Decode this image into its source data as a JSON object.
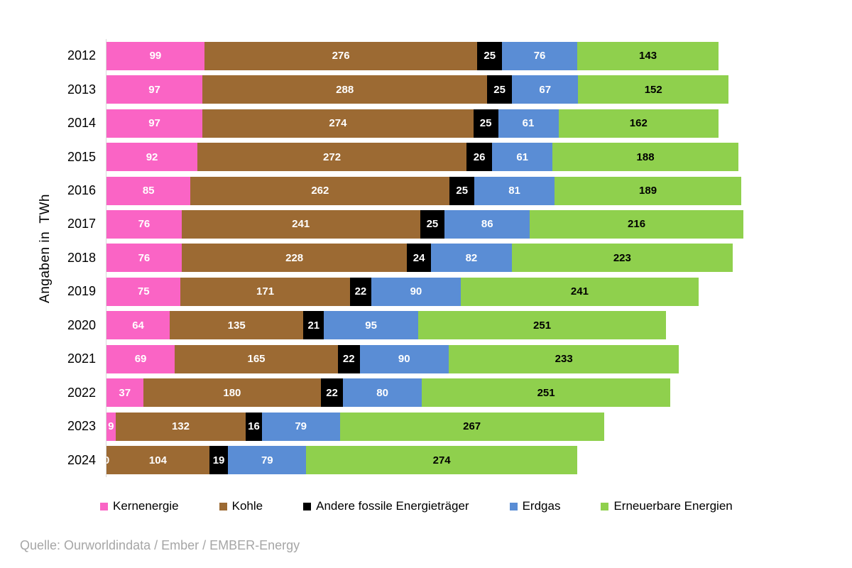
{
  "chart_data": {
    "type": "bar",
    "orientation": "horizontal",
    "stacked": true,
    "ylabel": "Angaben in  TWh",
    "unit": "TWh",
    "grid": false,
    "legend_position": "bottom",
    "xlim": [
      0,
      650
    ],
    "categories": [
      "2012",
      "2013",
      "2014",
      "2015",
      "2016",
      "2017",
      "2018",
      "2019",
      "2020",
      "2021",
      "2022",
      "2023",
      "2024"
    ],
    "series": [
      {
        "name": "Kernenergie",
        "color": "#fa64c5",
        "label_color": "#ffffff",
        "values": [
          99,
          97,
          97,
          92,
          85,
          76,
          76,
          75,
          64,
          69,
          37,
          9,
          0
        ]
      },
      {
        "name": "Kohle",
        "color": "#9c6a33",
        "label_color": "#ffffff",
        "values": [
          276,
          288,
          274,
          272,
          262,
          241,
          228,
          171,
          135,
          165,
          180,
          132,
          104
        ]
      },
      {
        "name": "Andere fossile Energieträger",
        "color": "#000000",
        "label_color": "#ffffff",
        "values": [
          25,
          25,
          25,
          26,
          25,
          25,
          24,
          22,
          21,
          22,
          22,
          16,
          19
        ]
      },
      {
        "name": "Erdgas",
        "color": "#5a8dd5",
        "label_color": "#ffffff",
        "values": [
          76,
          67,
          61,
          61,
          81,
          86,
          82,
          90,
          95,
          90,
          80,
          79,
          79
        ]
      },
      {
        "name": "Erneuerbare Energien",
        "color": "#8fd04d",
        "label_color": "#000000",
        "values": [
          143,
          152,
          162,
          188,
          189,
          216,
          223,
          241,
          251,
          233,
          251,
          267,
          274
        ]
      }
    ]
  },
  "footer": {
    "source": "Quelle: Ourworldindata / Ember / EMBER-Energy"
  },
  "colors": {
    "axis_line": "#d9d9d9",
    "source_text": "#a6a6a6"
  }
}
